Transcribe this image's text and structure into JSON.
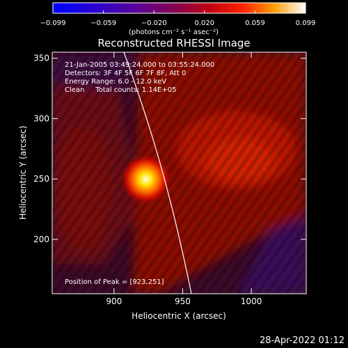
{
  "colorbar": {
    "ticks": [
      "−0.099",
      "−0.059",
      "−0.020",
      "0.020",
      "0.059",
      "0.099"
    ],
    "unit_label": "(photons cm⁻² s⁻¹ asec⁻²)"
  },
  "chart_data": {
    "type": "heatmap",
    "title": "Reconstructed RHESSI Image",
    "xlabel": "Heliocentric X (arcsec)",
    "ylabel": "Heliocentric Y (arcsec)",
    "xlim": [
      855,
      1040
    ],
    "ylim": [
      155,
      355
    ],
    "xticks": [
      900,
      950,
      1000
    ],
    "yticks": [
      200,
      250,
      300,
      350
    ],
    "color_range": [
      -0.099,
      0.099
    ],
    "colormap": "rainbow-to-white",
    "peak": {
      "x": 923,
      "y": 251
    },
    "annotations": [
      "21-Jan-2005 03:49:24.000 to 03:55:24.000",
      "Detectors: 3F 4F 5F 6F 7F 8F, Att 0",
      "Energy Range: 6.0 - 12.0 keV",
      "Clean     Total counts: 1.14E+05"
    ],
    "peak_label": "Position of Peak = [923,251]"
  },
  "timestamp": "28-Apr-2022 01:12"
}
